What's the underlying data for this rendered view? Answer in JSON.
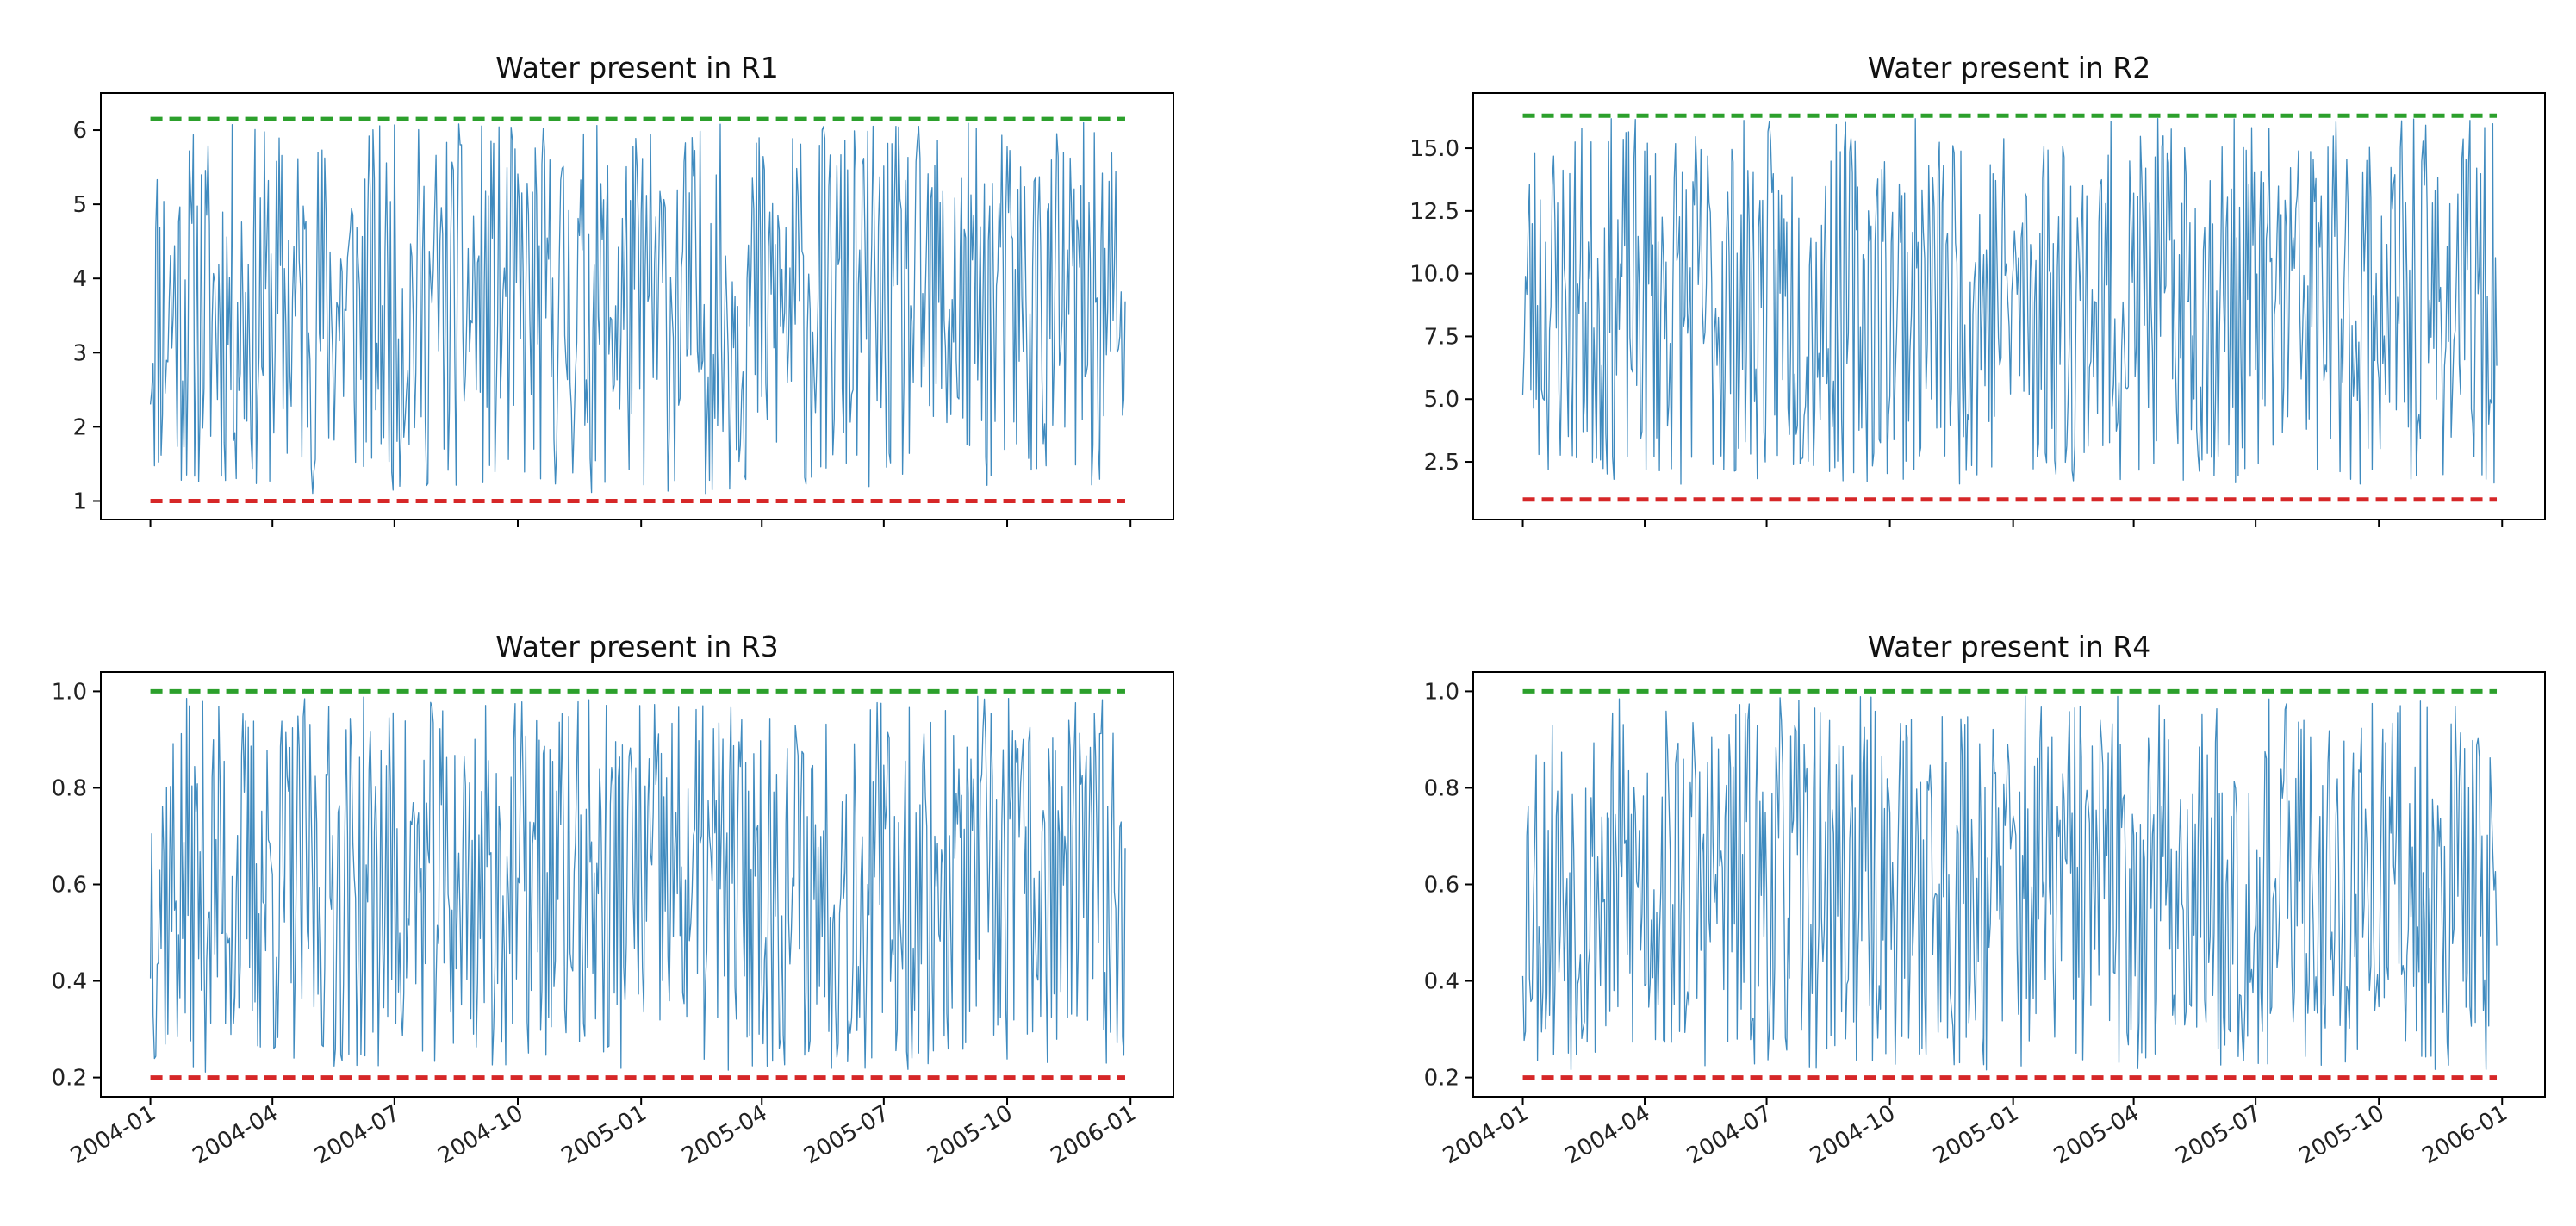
{
  "figure": {
    "panels_layout": "2x2 grid",
    "sharex": true,
    "n_points": 728
  },
  "colors": {
    "series": "#1f77b4",
    "upper": "#2ca02c",
    "lower": "#d62728",
    "axes": "#000000",
    "background": "#ffffff"
  },
  "xaxis": {
    "start_date": "2004-01-01",
    "end_date": "2005-12-28",
    "xlim": [
      "2003-11-25",
      "2006-02-02"
    ],
    "ticks": [
      "2004-01-01",
      "2004-04-01",
      "2004-07-01",
      "2004-10-01",
      "2005-01-01",
      "2005-04-01",
      "2005-07-01",
      "2005-10-01",
      "2006-01-01"
    ],
    "tick_labels": [
      "2004-01",
      "2004-04",
      "2004-07",
      "2004-10",
      "2005-01",
      "2005-04",
      "2005-07",
      "2005-10",
      "2006-01"
    ]
  },
  "chart_data": [
    {
      "type": "line",
      "title": "Water present in R1",
      "ylim": [
        0.75,
        6.5
      ],
      "yticks": [
        1,
        2,
        3,
        4,
        5,
        6
      ],
      "ytick_labels": [
        "1",
        "2",
        "3",
        "4",
        "5",
        "6"
      ],
      "lower_bound": 1.0,
      "upper_bound": 6.15,
      "value_range": [
        1.1,
        6.1
      ],
      "seed": 11,
      "grid": false
    },
    {
      "type": "line",
      "title": "Water present in R2",
      "ylim": [
        0.2,
        17.2
      ],
      "yticks": [
        2.5,
        5.0,
        7.5,
        10.0,
        12.5,
        15.0
      ],
      "ytick_labels": [
        "2.5",
        "5.0",
        "7.5",
        "10.0",
        "12.5",
        "15.0"
      ],
      "lower_bound": 1.0,
      "upper_bound": 16.3,
      "value_range": [
        1.6,
        16.2
      ],
      "seed": 23,
      "grid": false
    },
    {
      "type": "line",
      "title": "Water present in R3",
      "ylim": [
        0.16,
        1.04
      ],
      "yticks": [
        0.2,
        0.4,
        0.6,
        0.8,
        1.0
      ],
      "ytick_labels": [
        "0.2",
        "0.4",
        "0.6",
        "0.8",
        "1.0"
      ],
      "lower_bound": 0.2,
      "upper_bound": 1.0,
      "value_range": [
        0.21,
        0.99
      ],
      "seed": 37,
      "grid": false
    },
    {
      "type": "line",
      "title": "Water present in R4",
      "ylim": [
        0.16,
        1.04
      ],
      "yticks": [
        0.2,
        0.4,
        0.6,
        0.8,
        1.0
      ],
      "ytick_labels": [
        "0.2",
        "0.4",
        "0.6",
        "0.8",
        "1.0"
      ],
      "lower_bound": 0.2,
      "upper_bound": 1.0,
      "value_range": [
        0.21,
        0.99
      ],
      "seed": 53,
      "grid": false
    }
  ]
}
